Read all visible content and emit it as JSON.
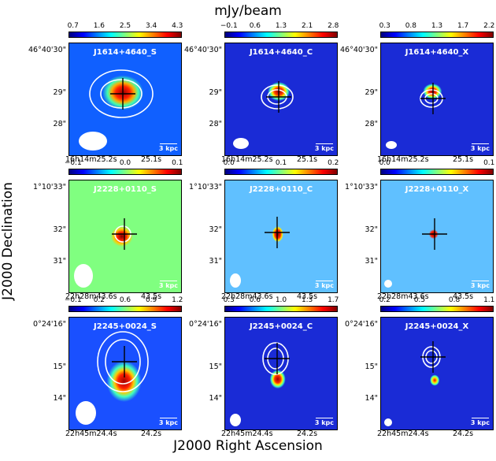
{
  "title": "mJy/beam",
  "xlabel": "J2000 Right Ascension",
  "ylabel": "J2000 Declination",
  "scalebar": "3 kpc",
  "rows": [
    {
      "dec_ticks": [
        "46°40'30\"",
        "29\"",
        "28\""
      ],
      "ra_ticks": [
        "16h14m25.2s",
        "25.1s"
      ],
      "panels": [
        {
          "name": "J1614+4640_S",
          "cbar": [
            "0.7",
            "1.6",
            "2.5",
            "3.4",
            "4.3"
          ]
        },
        {
          "name": "J1614+4640_C",
          "cbar": [
            "−0.1",
            "0.6",
            "1.3",
            "2.1",
            "2.8"
          ]
        },
        {
          "name": "J1614+4640_X",
          "cbar": [
            "0.3",
            "0.8",
            "1.3",
            "1.7",
            "2.2"
          ]
        }
      ]
    },
    {
      "dec_ticks": [
        "1°10'33\"",
        "32\"",
        "31\""
      ],
      "ra_ticks": [
        "22h28m43.6s",
        "43.5s"
      ],
      "panels": [
        {
          "name": "J2228+0110_S",
          "cbar": [
            "−0.1",
            "0.0",
            "0.1"
          ]
        },
        {
          "name": "J2228+0110_C",
          "cbar": [
            "0.0",
            "0.1",
            "0.2"
          ]
        },
        {
          "name": "J2228+0110_X",
          "cbar": [
            "0.0",
            "0.1"
          ]
        }
      ]
    },
    {
      "dec_ticks": [
        "0°24'16\"",
        "15\"",
        "14\""
      ],
      "ra_ticks": [
        "22h45m24.4s",
        "24.2s"
      ],
      "panels": [
        {
          "name": "J2245+0024_S",
          "cbar": [
            "−0.1",
            "0.2",
            "0.6",
            "0.9",
            "1.2"
          ]
        },
        {
          "name": "J2245+0024_C",
          "cbar": [
            "0.3",
            "0.6",
            "1.0",
            "1.3",
            "1.7"
          ]
        },
        {
          "name": "J2245+0024_X",
          "cbar": [
            "0.2",
            "0.5",
            "0.8",
            "1.1"
          ]
        }
      ]
    }
  ],
  "colors": {
    "background_blue": "#1a2bd6",
    "contour": "#ffffff",
    "cross": "#000000"
  }
}
